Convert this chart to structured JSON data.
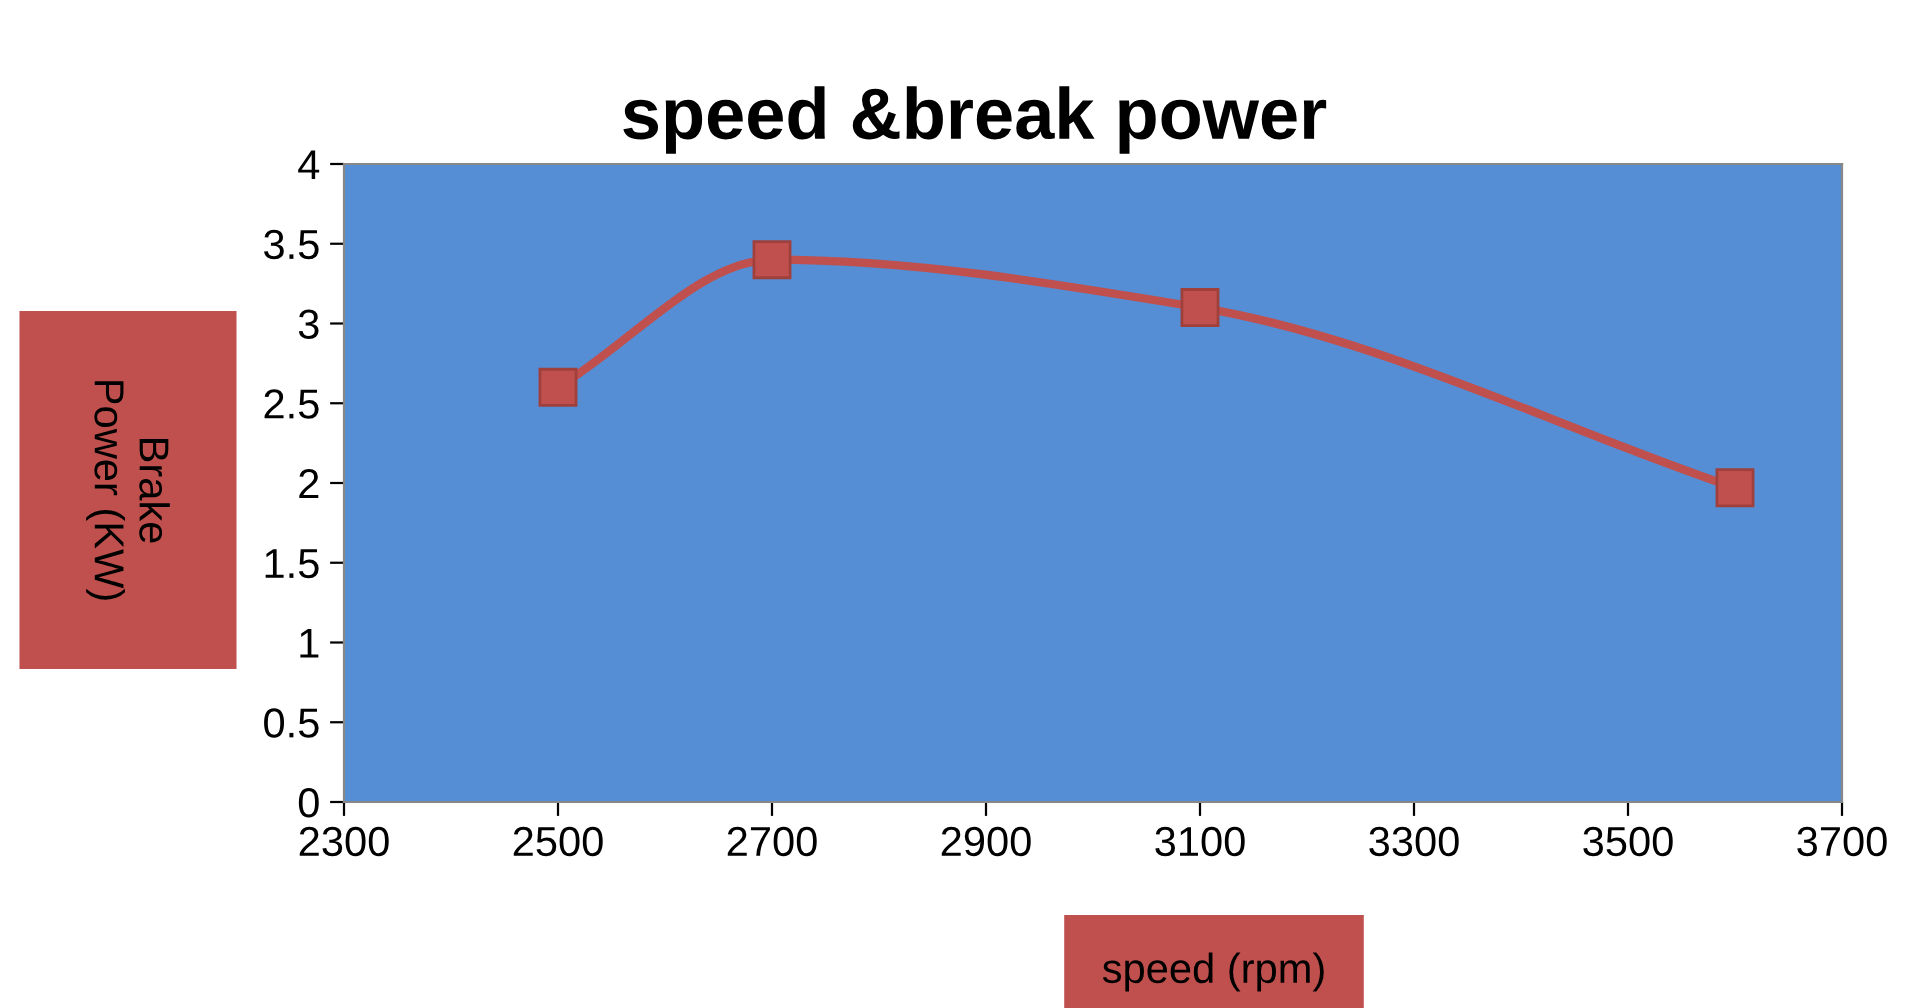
{
  "chart_data": {
    "type": "line",
    "title": "speed &break power",
    "xlabel": "speed (rpm)",
    "ylabel": "Brake\nPower (KW)",
    "x": [
      2500,
      2700,
      3100,
      3600
    ],
    "series": [
      {
        "color": "#c0504d",
        "values": [
          2.6,
          3.4,
          3.1,
          1.97
        ]
      }
    ],
    "xlim": [
      2300,
      3700
    ],
    "xticks": [
      2300,
      2500,
      2700,
      2900,
      3100,
      3300,
      3500,
      3700
    ],
    "ylim": [
      0,
      4
    ],
    "yticks": [
      0,
      0.5,
      1,
      1.5,
      2,
      2.5,
      3,
      3.5,
      4
    ],
    "marker": "square",
    "line_style": "solid",
    "grid": false,
    "legend": false
  }
}
